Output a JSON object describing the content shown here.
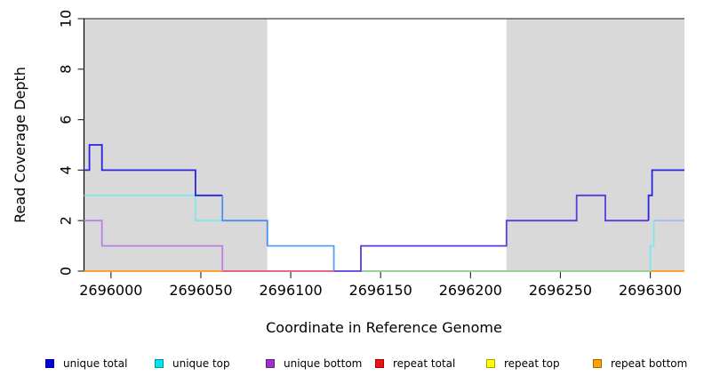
{
  "chart_data": {
    "type": "line",
    "step": true,
    "title": "",
    "xlabel": "Coordinate in Reference Genome",
    "ylabel": "Read Coverage Depth",
    "xlim": [
      2695985,
      2696319
    ],
    "ylim": [
      0,
      10
    ],
    "xticks": [
      2696000,
      2696050,
      2696100,
      2696150,
      2696200,
      2696250,
      2696300
    ],
    "yticks": [
      0,
      2,
      4,
      6,
      8,
      10
    ],
    "grid": false,
    "legend_position": "bottom",
    "shade_color": "#d9d9d9",
    "shaded_regions": [
      {
        "x1": 2695985,
        "x2": 2696087
      },
      {
        "x1": 2696220,
        "x2": 2696319
      }
    ],
    "series": [
      {
        "name": "unique total",
        "color": "#0000dd",
        "points": [
          [
            2695985,
            4
          ],
          [
            2695988,
            5
          ],
          [
            2695995,
            4
          ],
          [
            2696047,
            3
          ],
          [
            2696062,
            2
          ],
          [
            2696087,
            1
          ],
          [
            2696124,
            0
          ],
          [
            2696139,
            1
          ],
          [
            2696220,
            2
          ],
          [
            2696259,
            3
          ],
          [
            2696275,
            2
          ],
          [
            2696299,
            3
          ],
          [
            2696301,
            4
          ],
          [
            2696319,
            4
          ]
        ]
      },
      {
        "name": "unique top",
        "color": "#00e5ee",
        "points": [
          [
            2695985,
            3
          ],
          [
            2696047,
            2
          ],
          [
            2696087,
            1
          ],
          [
            2696124,
            0
          ],
          [
            2696300,
            1
          ],
          [
            2696302,
            2
          ],
          [
            2696319,
            2
          ]
        ]
      },
      {
        "name": "unique bottom",
        "color": "#9932cc",
        "points": [
          [
            2695985,
            2
          ],
          [
            2695995,
            1
          ],
          [
            2696062,
            0
          ],
          [
            2696139,
            1
          ],
          [
            2696220,
            2
          ],
          [
            2696259,
            3
          ],
          [
            2696275,
            2
          ],
          [
            2696319,
            2
          ]
        ]
      },
      {
        "name": "repeat total",
        "color": "#ee1111",
        "points": [
          [
            2695985,
            0
          ],
          [
            2696319,
            0
          ]
        ]
      },
      {
        "name": "repeat top",
        "color": "#ffff00",
        "points": [
          [
            2695985,
            0
          ],
          [
            2696319,
            0
          ]
        ]
      },
      {
        "name": "repeat bottom",
        "color": "#ffa200",
        "points": [
          [
            2695985,
            0
          ],
          [
            2696319,
            0
          ]
        ]
      }
    ],
    "visible_lines": [
      {
        "name": "baseline-orange-left",
        "color": "#ff9912",
        "points": [
          [
            2695985,
            0
          ],
          [
            2696062,
            0
          ]
        ]
      },
      {
        "name": "baseline-crimson",
        "color": "#e05577",
        "points": [
          [
            2696062,
            0
          ],
          [
            2696124,
            0
          ]
        ]
      },
      {
        "name": "baseline-green",
        "color": "#8ccc8c",
        "points": [
          [
            2696139,
            0
          ],
          [
            2696300,
            0
          ]
        ]
      },
      {
        "name": "baseline-orange-right",
        "color": "#ff9912",
        "points": [
          [
            2696300,
            0
          ],
          [
            2696319,
            0
          ]
        ]
      },
      {
        "name": "unique-bottom-left",
        "color": "#bb80e8",
        "points": [
          [
            2695985,
            2
          ],
          [
            2695995,
            2
          ],
          [
            2695995,
            1
          ],
          [
            2696062,
            1
          ],
          [
            2696062,
            0
          ]
        ]
      },
      {
        "name": "unique-top-left",
        "color": "#7de6f0",
        "points": [
          [
            2695985,
            3
          ],
          [
            2696047,
            3
          ],
          [
            2696047,
            2
          ],
          [
            2696062,
            2
          ]
        ]
      },
      {
        "name": "unique-top-right-rise",
        "color": "#7de6f0",
        "points": [
          [
            2696300,
            0
          ],
          [
            2696300,
            1
          ],
          [
            2696302,
            1
          ],
          [
            2696302,
            2
          ]
        ]
      },
      {
        "name": "unique-top-right",
        "color": "#a9b9ea",
        "points": [
          [
            2696302,
            2
          ],
          [
            2696319,
            2
          ]
        ]
      },
      {
        "name": "unique-total-left",
        "color": "#2a22e4",
        "points": [
          [
            2695985,
            4
          ],
          [
            2695988,
            4
          ],
          [
            2695988,
            5
          ],
          [
            2695995,
            5
          ],
          [
            2695995,
            4
          ],
          [
            2696047,
            4
          ],
          [
            2696047,
            3
          ],
          [
            2696062,
            3
          ]
        ]
      },
      {
        "name": "total-over-top-2",
        "color": "#4b90f0",
        "points": [
          [
            2696062,
            3
          ],
          [
            2696062,
            2
          ],
          [
            2696087,
            2
          ],
          [
            2696087,
            1
          ]
        ]
      },
      {
        "name": "total-over-top-1",
        "color": "#55a0f5",
        "points": [
          [
            2696087,
            1
          ],
          [
            2696124,
            1
          ],
          [
            2696124,
            0
          ]
        ]
      },
      {
        "name": "total-over-bottom",
        "color": "#5b3be0",
        "points": [
          [
            2696124,
            0
          ],
          [
            2696139,
            0
          ],
          [
            2696139,
            1
          ],
          [
            2696220,
            1
          ],
          [
            2696220,
            2
          ],
          [
            2696259,
            2
          ],
          [
            2696259,
            3
          ],
          [
            2696275,
            3
          ],
          [
            2696275,
            2
          ],
          [
            2696299,
            2
          ]
        ]
      },
      {
        "name": "unique-total-right",
        "color": "#2a22e4",
        "points": [
          [
            2696299,
            2
          ],
          [
            2696299,
            3
          ],
          [
            2696301,
            3
          ],
          [
            2696301,
            4
          ],
          [
            2696319,
            4
          ]
        ]
      }
    ],
    "legend": [
      {
        "label": "unique total",
        "color": "#0000dd"
      },
      {
        "label": "unique top",
        "color": "#00e5ee"
      },
      {
        "label": "unique bottom",
        "color": "#9932cc"
      },
      {
        "label": "repeat total",
        "color": "#ee1111"
      },
      {
        "label": "repeat top",
        "color": "#ffff00"
      },
      {
        "label": "repeat bottom",
        "color": "#ffa200"
      }
    ]
  }
}
